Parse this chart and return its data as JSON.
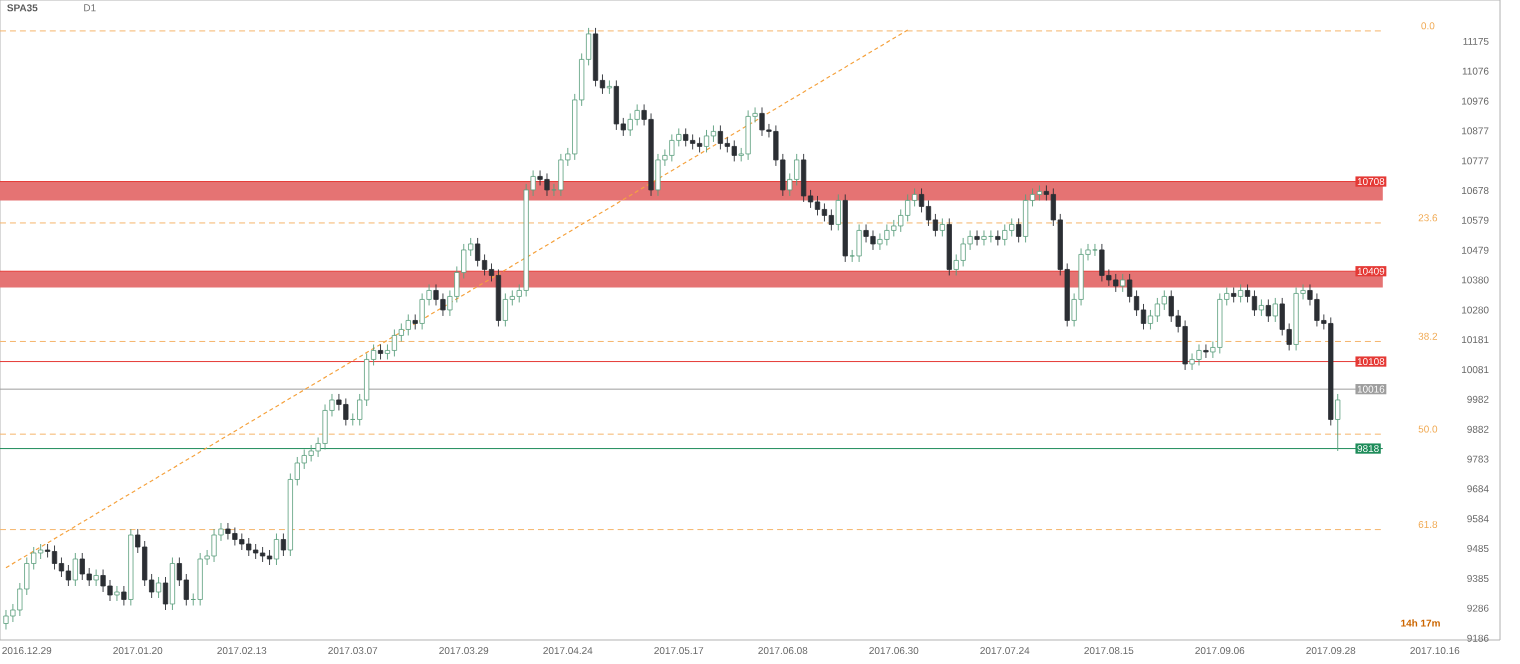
{
  "chart_data": {
    "type": "candlestick",
    "title": "SPA35",
    "subtitle": "D1",
    "categories": [
      null,
      null,
      null,
      "2016.12.29",
      null,
      null,
      null,
      null,
      null,
      null,
      null,
      null,
      null,
      null,
      null,
      null,
      null,
      null,
      null,
      "2017.01.20",
      null,
      null,
      null,
      null,
      null,
      null,
      null,
      null,
      null,
      null,
      null,
      null,
      null,
      null,
      "2017.02.13",
      null,
      null,
      null,
      null,
      null,
      null,
      null,
      null,
      null,
      null,
      null,
      null,
      null,
      null,
      null,
      "2017.03.07",
      null,
      null,
      null,
      null,
      null,
      null,
      null,
      null,
      null,
      null,
      null,
      null,
      null,
      null,
      null,
      "2017.03.29",
      null,
      null,
      null,
      null,
      null,
      null,
      null,
      null,
      null,
      null,
      null,
      null,
      null,
      null,
      "2017.04.24",
      null,
      null,
      null,
      null,
      null,
      null,
      null,
      null,
      null,
      null,
      null,
      null,
      null,
      null,
      null,
      "2017.05.17",
      null,
      null,
      null,
      null,
      null,
      null,
      null,
      null,
      null,
      null,
      null,
      null,
      null,
      null,
      "2017.06.08",
      null,
      null,
      null,
      null,
      null,
      null,
      null,
      null,
      null,
      null,
      null,
      null,
      null,
      null,
      null,
      "2017.06.30",
      null,
      null,
      null,
      null,
      null,
      null,
      null,
      null,
      null,
      null,
      null,
      null,
      null,
      null,
      null,
      "2017.07.24",
      null,
      null,
      null,
      null,
      null,
      null,
      null,
      null,
      null,
      null,
      null,
      null,
      null,
      null,
      "2017.08.15",
      null,
      null,
      null,
      null,
      null,
      null,
      null,
      null,
      null,
      null,
      null,
      null,
      null,
      null,
      null,
      "2017.09.06",
      null,
      null,
      null,
      null,
      null,
      null,
      null,
      null,
      null,
      null,
      null,
      null,
      null,
      null,
      null,
      "2017.09.28",
      null,
      null,
      null,
      null,
      null,
      null,
      null,
      null,
      null,
      null,
      null,
      null,
      null,
      null,
      "2017.10.16"
    ],
    "ohlc": [
      [
        9235,
        9280,
        9215,
        9260
      ],
      [
        9260,
        9300,
        9240,
        9280
      ],
      [
        9280,
        9370,
        9260,
        9350
      ],
      [
        9350,
        9455,
        9330,
        9435
      ],
      [
        9435,
        9490,
        9415,
        9470
      ],
      [
        9470,
        9500,
        9450,
        9480
      ],
      [
        9480,
        9500,
        9455,
        9475
      ],
      [
        9475,
        9495,
        9415,
        9435
      ],
      [
        9435,
        9455,
        9390,
        9410
      ],
      [
        9410,
        9430,
        9360,
        9380
      ],
      [
        9380,
        9470,
        9360,
        9450
      ],
      [
        9450,
        9470,
        9380,
        9400
      ],
      [
        9400,
        9420,
        9360,
        9380
      ],
      [
        9380,
        9415,
        9360,
        9395
      ],
      [
        9395,
        9415,
        9340,
        9360
      ],
      [
        9360,
        9380,
        9310,
        9330
      ],
      [
        9330,
        9360,
        9310,
        9340
      ],
      [
        9340,
        9360,
        9295,
        9315
      ],
      [
        9315,
        9550,
        9295,
        9530
      ],
      [
        9530,
        9550,
        9470,
        9490
      ],
      [
        9490,
        9510,
        9360,
        9380
      ],
      [
        9380,
        9400,
        9320,
        9340
      ],
      [
        9340,
        9390,
        9320,
        9370
      ],
      [
        9370,
        9390,
        9280,
        9300
      ],
      [
        9300,
        9455,
        9280,
        9435
      ],
      [
        9435,
        9455,
        9360,
        9380
      ],
      [
        9380,
        9400,
        9295,
        9315
      ],
      [
        9315,
        9335,
        9295,
        9315
      ],
      [
        9315,
        9470,
        9295,
        9450
      ],
      [
        9450,
        9480,
        9430,
        9460
      ],
      [
        9460,
        9550,
        9440,
        9530
      ],
      [
        9530,
        9570,
        9510,
        9550
      ],
      [
        9550,
        9570,
        9515,
        9535
      ],
      [
        9535,
        9555,
        9495,
        9515
      ],
      [
        9515,
        9535,
        9480,
        9500
      ],
      [
        9500,
        9520,
        9460,
        9480
      ],
      [
        9480,
        9500,
        9450,
        9470
      ],
      [
        9470,
        9490,
        9440,
        9460
      ],
      [
        9460,
        9480,
        9430,
        9450
      ],
      [
        9450,
        9535,
        9430,
        9515
      ],
      [
        9515,
        9535,
        9460,
        9480
      ],
      [
        9480,
        9735,
        9460,
        9715
      ],
      [
        9715,
        9790,
        9695,
        9770
      ],
      [
        9770,
        9815,
        9750,
        9795
      ],
      [
        9795,
        9830,
        9775,
        9810
      ],
      [
        9810,
        9855,
        9790,
        9835
      ],
      [
        9835,
        9965,
        9815,
        9945
      ],
      [
        9945,
        10000,
        9925,
        9980
      ],
      [
        9980,
        10000,
        9945,
        9965
      ],
      [
        9965,
        9985,
        9895,
        9915
      ],
      [
        9915,
        9935,
        9895,
        9915
      ],
      [
        9915,
        10000,
        9895,
        9980
      ],
      [
        9980,
        10135,
        9960,
        10115
      ],
      [
        10115,
        10165,
        10095,
        10145
      ],
      [
        10145,
        10165,
        10115,
        10135
      ],
      [
        10135,
        10165,
        10115,
        10145
      ],
      [
        10145,
        10215,
        10125,
        10195
      ],
      [
        10195,
        10235,
        10175,
        10215
      ],
      [
        10215,
        10265,
        10195,
        10245
      ],
      [
        10245,
        10265,
        10215,
        10235
      ],
      [
        10235,
        10335,
        10215,
        10315
      ],
      [
        10315,
        10365,
        10295,
        10345
      ],
      [
        10345,
        10365,
        10295,
        10315
      ],
      [
        10315,
        10335,
        10260,
        10280
      ],
      [
        10280,
        10345,
        10260,
        10325
      ],
      [
        10325,
        10425,
        10305,
        10405
      ],
      [
        10405,
        10500,
        10385,
        10480
      ],
      [
        10480,
        10520,
        10460,
        10500
      ],
      [
        10500,
        10520,
        10425,
        10445
      ],
      [
        10445,
        10465,
        10395,
        10415
      ],
      [
        10415,
        10435,
        10375,
        10395
      ],
      [
        10395,
        10415,
        10225,
        10245
      ],
      [
        10245,
        10335,
        10225,
        10315
      ],
      [
        10315,
        10345,
        10295,
        10325
      ],
      [
        10325,
        10365,
        10305,
        10345
      ],
      [
        10345,
        10700,
        10325,
        10680
      ],
      [
        10680,
        10745,
        10660,
        10725
      ],
      [
        10725,
        10745,
        10695,
        10715
      ],
      [
        10715,
        10735,
        10660,
        10680
      ],
      [
        10680,
        10700,
        10660,
        10680
      ],
      [
        10680,
        10800,
        10660,
        10780
      ],
      [
        10780,
        10820,
        10760,
        10800
      ],
      [
        10800,
        11000,
        10780,
        10980
      ],
      [
        10980,
        11135,
        10960,
        11115
      ],
      [
        11115,
        11220,
        11095,
        11200
      ],
      [
        11200,
        11220,
        11025,
        11045
      ],
      [
        11045,
        11065,
        11000,
        11020
      ],
      [
        11020,
        11045,
        11000,
        11025
      ],
      [
        11025,
        11045,
        10880,
        10900
      ],
      [
        10900,
        10920,
        10860,
        10880
      ],
      [
        10880,
        10935,
        10860,
        10915
      ],
      [
        10915,
        10965,
        10895,
        10945
      ],
      [
        10945,
        10965,
        10895,
        10915
      ],
      [
        10915,
        10935,
        10660,
        10680
      ],
      [
        10680,
        10800,
        10660,
        10780
      ],
      [
        10780,
        10815,
        10760,
        10795
      ],
      [
        10795,
        10865,
        10775,
        10845
      ],
      [
        10845,
        10885,
        10825,
        10865
      ],
      [
        10865,
        10885,
        10825,
        10845
      ],
      [
        10845,
        10865,
        10815,
        10835
      ],
      [
        10835,
        10855,
        10805,
        10825
      ],
      [
        10825,
        10880,
        10805,
        10860
      ],
      [
        10860,
        10895,
        10840,
        10875
      ],
      [
        10875,
        10895,
        10815,
        10835
      ],
      [
        10835,
        10855,
        10805,
        10825
      ],
      [
        10825,
        10845,
        10775,
        10795
      ],
      [
        10795,
        10820,
        10775,
        10800
      ],
      [
        10800,
        10945,
        10780,
        10925
      ],
      [
        10925,
        10955,
        10905,
        10935
      ],
      [
        10935,
        10955,
        10860,
        10880
      ],
      [
        10880,
        10900,
        10855,
        10875
      ],
      [
        10875,
        10895,
        10760,
        10780
      ],
      [
        10780,
        10800,
        10660,
        10680
      ],
      [
        10680,
        10735,
        10660,
        10715
      ],
      [
        10715,
        10800,
        10695,
        10780
      ],
      [
        10780,
        10800,
        10640,
        10660
      ],
      [
        10660,
        10680,
        10620,
        10640
      ],
      [
        10640,
        10660,
        10595,
        10615
      ],
      [
        10615,
        10635,
        10575,
        10595
      ],
      [
        10595,
        10615,
        10545,
        10565
      ],
      [
        10565,
        10665,
        10545,
        10645
      ],
      [
        10645,
        10665,
        10440,
        10460
      ],
      [
        10460,
        10480,
        10440,
        10460
      ],
      [
        10460,
        10565,
        10440,
        10545
      ],
      [
        10545,
        10565,
        10505,
        10525
      ],
      [
        10525,
        10545,
        10480,
        10500
      ],
      [
        10500,
        10535,
        10480,
        10515
      ],
      [
        10515,
        10565,
        10495,
        10545
      ],
      [
        10545,
        10580,
        10525,
        10560
      ],
      [
        10560,
        10615,
        10540,
        10595
      ],
      [
        10595,
        10665,
        10575,
        10645
      ],
      [
        10645,
        10685,
        10625,
        10665
      ],
      [
        10665,
        10685,
        10605,
        10625
      ],
      [
        10625,
        10645,
        10560,
        10580
      ],
      [
        10580,
        10600,
        10525,
        10545
      ],
      [
        10545,
        10585,
        10525,
        10565
      ],
      [
        10565,
        10585,
        10395,
        10415
      ],
      [
        10415,
        10465,
        10395,
        10445
      ],
      [
        10445,
        10520,
        10425,
        10500
      ],
      [
        10500,
        10545,
        10480,
        10525
      ],
      [
        10525,
        10545,
        10495,
        10515
      ],
      [
        10515,
        10545,
        10495,
        10525
      ],
      [
        10525,
        10545,
        10505,
        10525
      ],
      [
        10525,
        10545,
        10495,
        10515
      ],
      [
        10515,
        10565,
        10495,
        10545
      ],
      [
        10545,
        10585,
        10525,
        10565
      ],
      [
        10565,
        10585,
        10505,
        10525
      ],
      [
        10525,
        10665,
        10505,
        10645
      ],
      [
        10645,
        10685,
        10625,
        10665
      ],
      [
        10665,
        10695,
        10645,
        10675
      ],
      [
        10675,
        10695,
        10645,
        10665
      ],
      [
        10665,
        10685,
        10560,
        10580
      ],
      [
        10580,
        10600,
        10395,
        10415
      ],
      [
        10415,
        10435,
        10225,
        10245
      ],
      [
        10245,
        10335,
        10225,
        10315
      ],
      [
        10315,
        10485,
        10295,
        10465
      ],
      [
        10465,
        10500,
        10445,
        10480
      ],
      [
        10480,
        10500,
        10460,
        10480
      ],
      [
        10480,
        10500,
        10375,
        10395
      ],
      [
        10395,
        10415,
        10360,
        10380
      ],
      [
        10380,
        10400,
        10340,
        10360
      ],
      [
        10360,
        10400,
        10340,
        10380
      ],
      [
        10380,
        10400,
        10305,
        10325
      ],
      [
        10325,
        10345,
        10260,
        10280
      ],
      [
        10280,
        10300,
        10215,
        10235
      ],
      [
        10235,
        10280,
        10215,
        10260
      ],
      [
        10260,
        10320,
        10240,
        10300
      ],
      [
        10300,
        10345,
        10280,
        10325
      ],
      [
        10325,
        10345,
        10240,
        10260
      ],
      [
        10260,
        10280,
        10205,
        10225
      ],
      [
        10225,
        10245,
        10080,
        10100
      ],
      [
        10100,
        10135,
        10080,
        10115
      ],
      [
        10115,
        10165,
        10095,
        10145
      ],
      [
        10145,
        10165,
        10120,
        10140
      ],
      [
        10140,
        10175,
        10120,
        10155
      ],
      [
        10155,
        10335,
        10135,
        10315
      ],
      [
        10315,
        10355,
        10295,
        10335
      ],
      [
        10335,
        10355,
        10305,
        10325
      ],
      [
        10325,
        10365,
        10305,
        10345
      ],
      [
        10345,
        10365,
        10305,
        10325
      ],
      [
        10325,
        10345,
        10260,
        10280
      ],
      [
        10280,
        10315,
        10260,
        10295
      ],
      [
        10295,
        10315,
        10240,
        10260
      ],
      [
        10260,
        10320,
        10240,
        10300
      ],
      [
        10300,
        10320,
        10195,
        10215
      ],
      [
        10215,
        10235,
        10145,
        10165
      ],
      [
        10165,
        10355,
        10145,
        10335
      ],
      [
        10335,
        10365,
        10315,
        10345
      ],
      [
        10345,
        10365,
        10295,
        10315
      ],
      [
        10315,
        10335,
        10225,
        10245
      ],
      [
        10245,
        10265,
        10215,
        10235
      ],
      [
        10235,
        10255,
        9895,
        9915
      ],
      [
        9915,
        10000,
        9810,
        9980
      ],
      null,
      null,
      null,
      null,
      null,
      null,
      null,
      null,
      null,
      null,
      null,
      null,
      null,
      null
    ],
    "series": [
      {
        "type": "line",
        "color": "#f5a340",
        "line_style": "dashed",
        "values": [
          9421,
          null,
          null,
          null,
          null,
          null,
          null,
          null,
          null,
          null,
          null,
          null,
          null,
          null,
          null,
          null,
          null,
          null,
          null,
          null,
          null,
          null,
          null,
          null,
          null,
          null,
          null,
          null,
          null,
          null,
          null,
          null,
          null,
          null,
          null,
          null,
          null,
          null,
          null,
          null,
          null,
          null,
          null,
          null,
          null,
          null,
          null,
          null,
          null,
          null,
          null,
          null,
          null,
          null,
          null,
          null,
          null,
          null,
          null,
          null,
          null,
          null,
          null,
          null,
          null,
          null,
          null,
          null,
          null,
          null,
          null,
          null,
          null,
          null,
          null,
          null,
          null,
          null,
          null,
          null,
          null,
          null,
          null,
          null,
          null,
          null,
          null,
          null,
          null,
          null,
          null,
          null,
          null,
          null,
          null,
          null,
          null,
          null,
          null,
          null,
          null,
          null,
          null,
          null,
          null,
          null,
          null,
          null,
          null,
          null,
          null,
          null,
          null,
          null,
          null,
          null,
          null,
          null,
          null,
          null,
          null,
          null,
          null,
          null,
          null,
          null,
          null,
          null,
          null,
          null,
          11213,
          null,
          null,
          null,
          null,
          null,
          null,
          null,
          null,
          null,
          null,
          null,
          null,
          null,
          null,
          null,
          null,
          null,
          null,
          null,
          null,
          null,
          null,
          null,
          null,
          null,
          null,
          null,
          null,
          null,
          null,
          null,
          null,
          null,
          null,
          null,
          null,
          null,
          null,
          null,
          null,
          null,
          null,
          null,
          null,
          null,
          null,
          null,
          null,
          null,
          null,
          null,
          null,
          null,
          null,
          null,
          null,
          null,
          null,
          null,
          null,
          null,
          null,
          null,
          null,
          null,
          null,
          null,
          null,
          null,
          null,
          null,
          null,
          null,
          null,
          null,
          null
        ]
      }
    ],
    "ylim": [
      9180,
      11313
    ],
    "yticks": [
      9186,
      9286,
      9385,
      9485,
      9584,
      9684,
      9783,
      9882,
      9982,
      10081,
      10181,
      10280,
      10380,
      10479,
      10579,
      10678,
      10777,
      10877,
      10976,
      11076,
      11175
    ],
    "bands": [
      {
        "axis": "y",
        "from": 10645,
        "to": 10708,
        "color": "#e57373"
      },
      {
        "axis": "y",
        "from": 10355,
        "to": 10409,
        "color": "#e57373"
      }
    ],
    "ref_lines": [
      {
        "axis": "y",
        "value": 11210,
        "color": "#f5b46a",
        "line_style": "dashed"
      },
      {
        "axis": "y",
        "value": 10570,
        "color": "#f5b46a",
        "line_style": "dashed"
      },
      {
        "axis": "y",
        "value": 10175,
        "color": "#f5b46a",
        "line_style": "dashed"
      },
      {
        "axis": "y",
        "value": 9866,
        "color": "#f5b46a",
        "line_style": "dashed"
      },
      {
        "axis": "y",
        "value": 9548,
        "color": "#f5b46a",
        "line_style": "dashed"
      },
      {
        "axis": "y",
        "value": 10708,
        "label": "10708",
        "color": "#e53935",
        "line_style": "solid"
      },
      {
        "axis": "y",
        "value": 10409,
        "label": "10409",
        "color": "#e53935",
        "line_style": "solid"
      },
      {
        "axis": "y",
        "value": 10108,
        "label": "10108",
        "color": "#e53935",
        "line_style": "solid"
      },
      {
        "axis": "y",
        "value": 10016,
        "label": "10016",
        "color": "#9e9e9e",
        "line_style": "solid"
      },
      {
        "axis": "y",
        "value": 9818,
        "label": "9818",
        "color": "#1e8c5a",
        "line_style": "solid"
      }
    ],
    "annotations": [
      "0.0",
      "23.6",
      "38.2",
      "50.0",
      "61.8",
      "14h 17m"
    ]
  }
}
